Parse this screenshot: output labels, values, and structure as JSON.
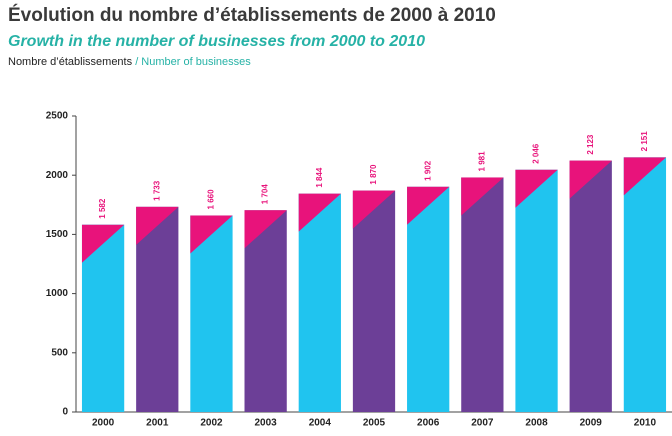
{
  "chart_data": {
    "type": "bar",
    "title": "Évolution du nombre d’établissements de 2000 à 2010",
    "subtitle": "Growth in the number of businesses from 2000 to 2010",
    "y_axis_label": "Nombre d’établissements",
    "y_axis_label_en": "/ Number of businesses",
    "categories": [
      "2000",
      "2001",
      "2002",
      "2003",
      "2004",
      "2005",
      "2006",
      "2007",
      "2008",
      "2009",
      "2010"
    ],
    "values": [
      1582,
      1733,
      1660,
      1704,
      1844,
      1870,
      1902,
      1981,
      2046,
      2123,
      2151
    ],
    "value_labels": [
      "1 582",
      "1 733",
      "1 660",
      "1 704",
      "1 844",
      "1 870",
      "1 902",
      "1 981",
      "2 046",
      "2 123",
      "2 151"
    ],
    "colors": [
      "#20c4ef",
      "#6c3f97"
    ],
    "accent_color": "#e8137b",
    "ylim": [
      0,
      2500
    ],
    "yticks": [
      0,
      500,
      1000,
      1500,
      2000,
      2500
    ],
    "grid": false
  }
}
